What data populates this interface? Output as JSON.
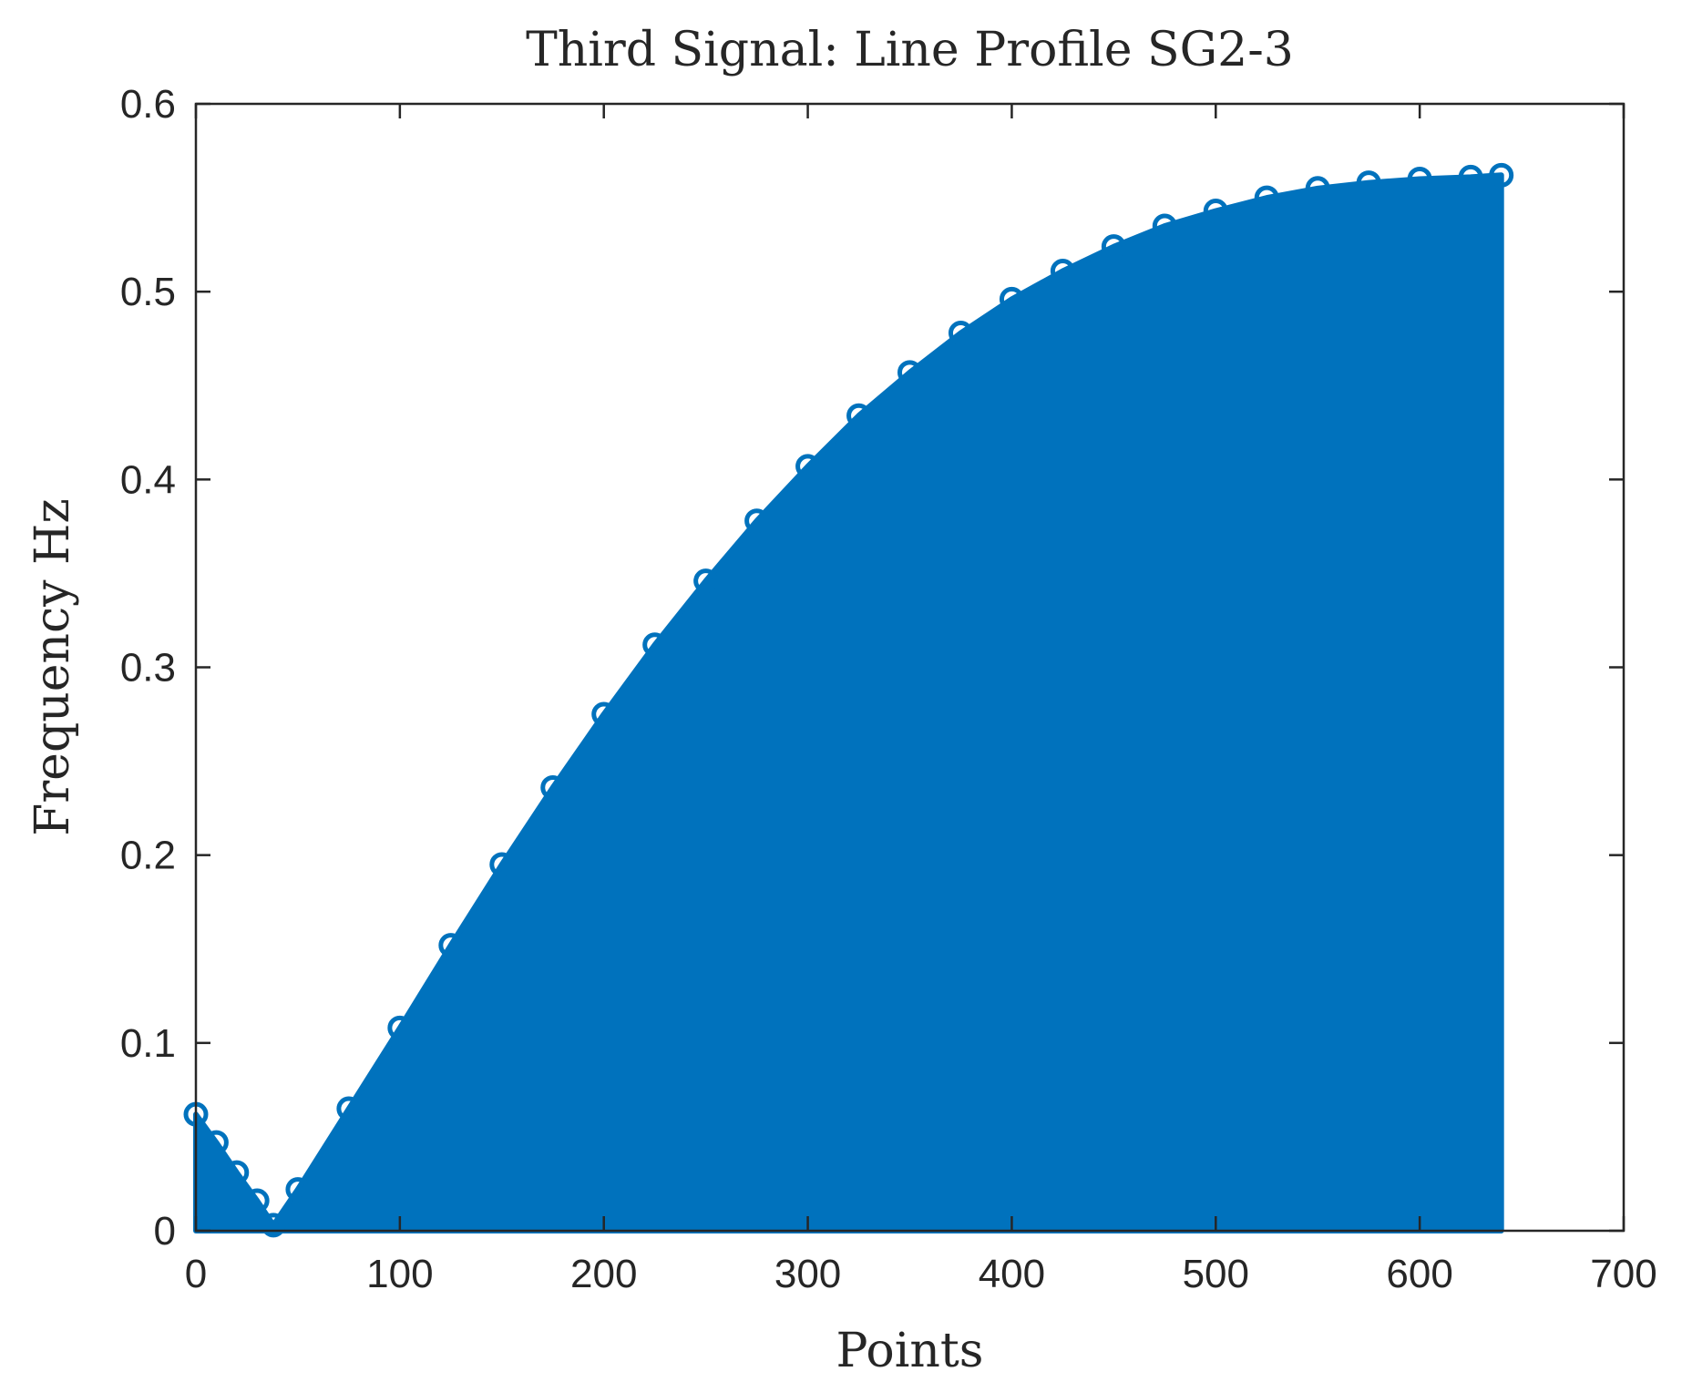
{
  "chart_data": {
    "type": "area",
    "title": "Third Signal: Line Profile SG2-3",
    "xlabel": "Points",
    "ylabel": "Frequency Hz",
    "xlim": [
      0,
      700
    ],
    "ylim": [
      0,
      0.6
    ],
    "xticks": [
      0,
      100,
      200,
      300,
      400,
      500,
      600,
      700
    ],
    "yticks": [
      0,
      0.1,
      0.2,
      0.3,
      0.4,
      0.5,
      0.6
    ],
    "xtick_labels": [
      "0",
      "100",
      "200",
      "300",
      "400",
      "500",
      "600",
      "700"
    ],
    "ytick_labels": [
      "0",
      "0.1",
      "0.2",
      "0.3",
      "0.4",
      "0.5",
      "0.6"
    ],
    "grid": false,
    "legend": "none",
    "marker": "circle",
    "color": "#0072BD",
    "series": [
      {
        "x": [
          0,
          10,
          20,
          30,
          38,
          50,
          75,
          100,
          125,
          150,
          175,
          200,
          225,
          250,
          275,
          300,
          325,
          350,
          375,
          400,
          425,
          450,
          475,
          500,
          525,
          550,
          575,
          600,
          625,
          640
        ],
        "values": [
          0.062,
          0.047,
          0.031,
          0.016,
          0.003,
          0.022,
          0.065,
          0.108,
          0.152,
          0.195,
          0.236,
          0.275,
          0.312,
          0.346,
          0.378,
          0.407,
          0.434,
          0.457,
          0.478,
          0.496,
          0.511,
          0.524,
          0.535,
          0.543,
          0.55,
          0.555,
          0.558,
          0.56,
          0.561,
          0.562
        ]
      }
    ]
  }
}
